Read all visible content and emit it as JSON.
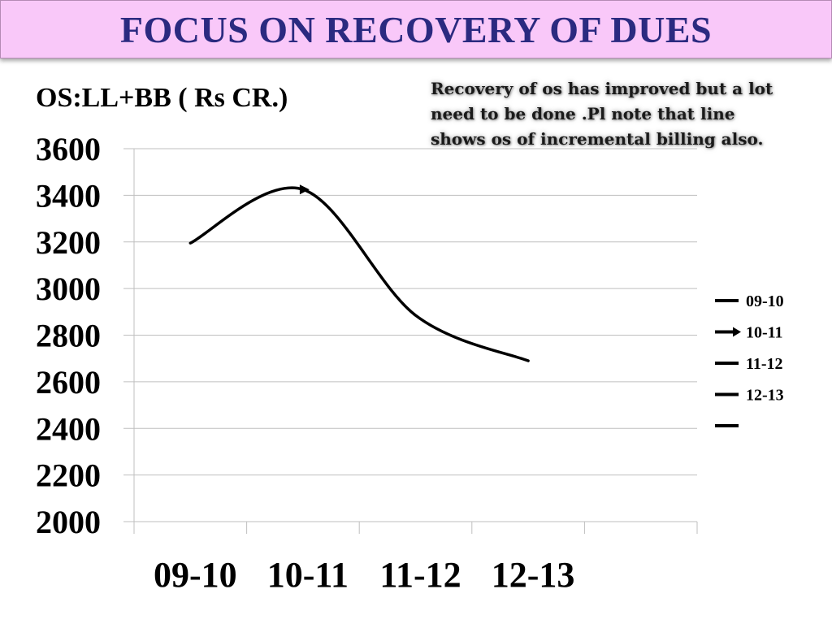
{
  "header": {
    "title": "FOCUS ON RECOVERY OF DUES"
  },
  "annotation": {
    "line1": "Recovery of os has improved but a lot",
    "line2": "need to be done .Pl note that line",
    "line3": "shows os of  incremental billing also."
  },
  "colors": {
    "title_bg": "#f9c8f9",
    "title_text": "#2b2a80",
    "line": "#000000",
    "grid": "#bfbfbf"
  },
  "chart_data": {
    "type": "line",
    "title": "",
    "ylabel": "OS:LL+BB ( Rs CR.)",
    "xlabel": "",
    "ylim": [
      2000,
      3600
    ],
    "yticks": [
      3600,
      3400,
      3200,
      3000,
      2800,
      2600,
      2400,
      2200,
      2000
    ],
    "categories": [
      "09-10",
      "10-11",
      "11-12",
      "12-13"
    ],
    "series": [
      {
        "values": [
          3195,
          3425,
          2885,
          2690
        ]
      }
    ],
    "legend": {
      "position": "right",
      "entries": [
        "09-10",
        "10-11",
        "11-12",
        "12-13",
        ""
      ]
    },
    "grid": true
  }
}
